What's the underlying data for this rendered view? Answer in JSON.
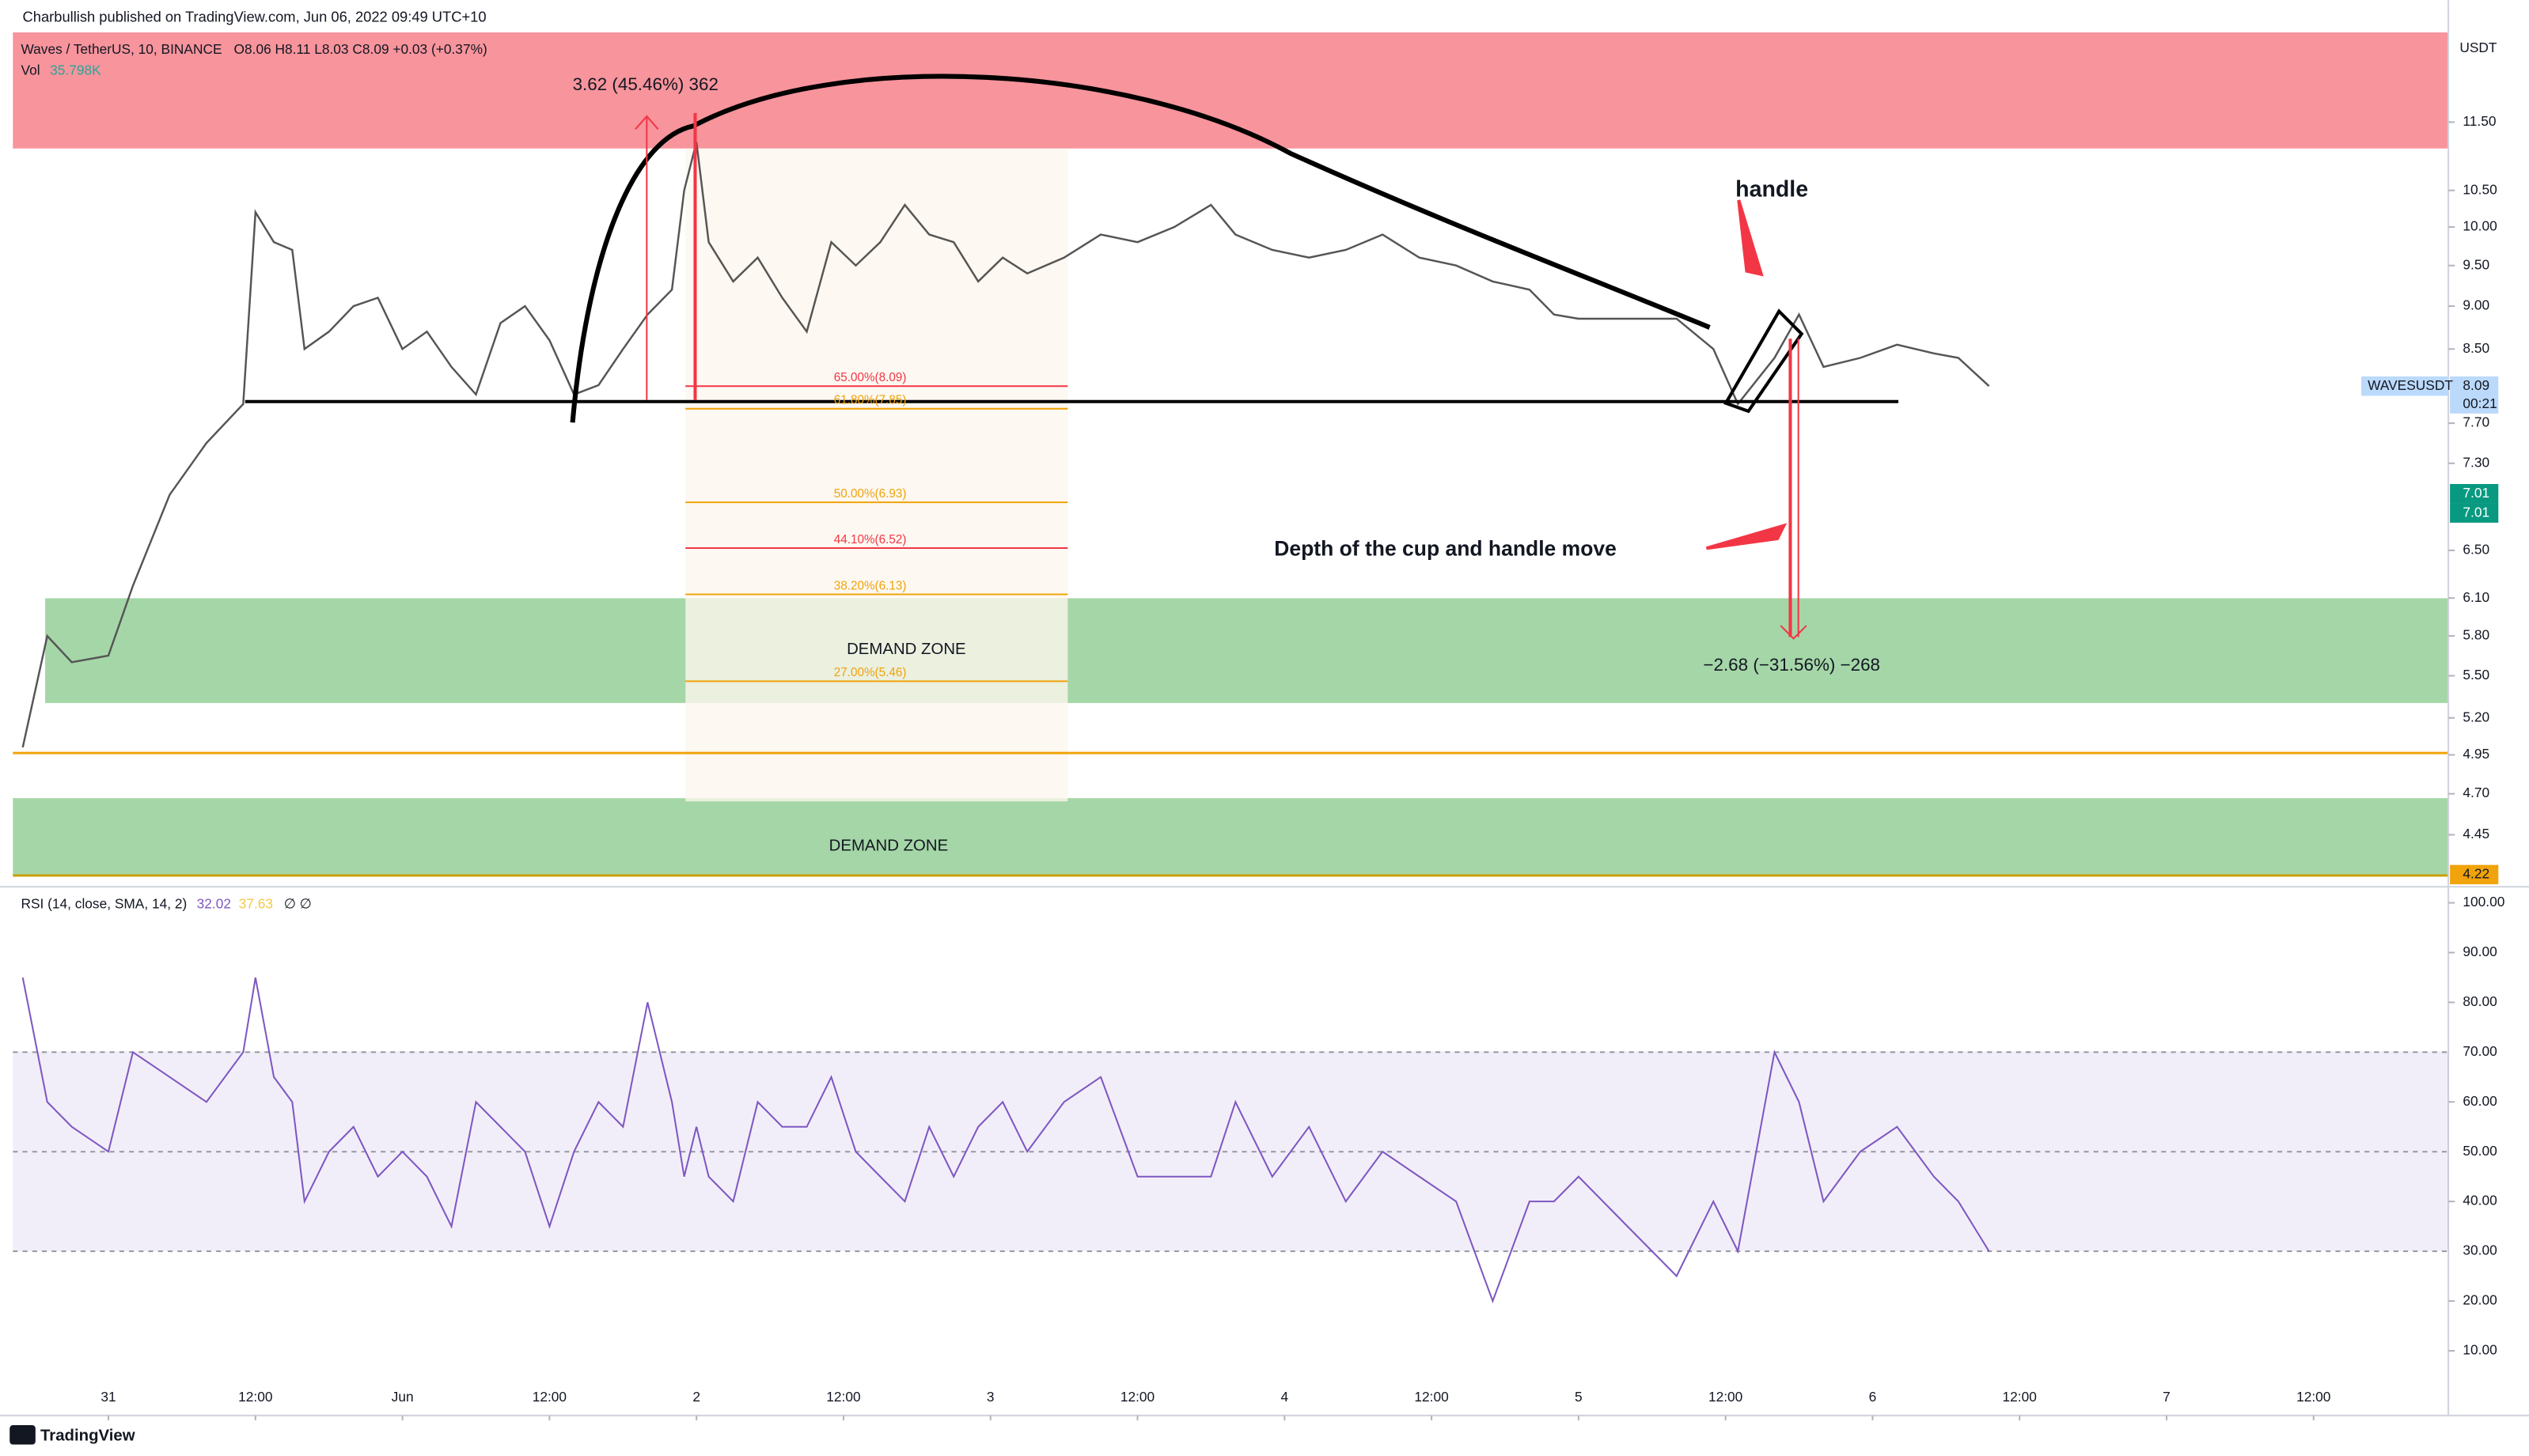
{
  "header": {
    "published": "Charbullish published on TradingView.com, Jun 06, 2022 09:49 UTC+10"
  },
  "legend": {
    "symbol": "Waves / TetherUS, 10, BINANCE",
    "ohlc": "O8.06 H8.11 L8.03 C8.09 +0.03 (+0.37%)",
    "vol_label": "Vol",
    "vol_value": "35.798K"
  },
  "chart_data": {
    "type": "line",
    "log_scale": true,
    "color": "#555555",
    "x": [
      -7,
      -5,
      -3,
      0,
      2,
      5,
      8,
      11,
      12,
      13.5,
      15,
      16,
      18,
      20,
      22,
      24,
      26,
      28,
      30,
      32,
      34,
      36,
      38,
      40,
      42,
      44,
      46,
      47,
      48,
      49,
      51,
      53,
      55,
      57,
      59,
      61,
      63,
      65,
      67,
      69,
      71,
      73,
      75,
      78,
      81,
      84,
      87,
      90,
      92,
      95,
      98,
      101,
      104,
      107,
      110,
      113,
      116,
      118,
      120,
      124,
      128,
      131,
      133,
      136,
      138,
      140,
      143,
      146,
      149,
      151,
      153.5
    ],
    "values": [
      5.0,
      5.8,
      5.6,
      5.65,
      6.2,
      7.0,
      7.5,
      7.9,
      10.2,
      9.8,
      9.7,
      8.5,
      8.7,
      9.0,
      9.1,
      8.5,
      8.7,
      8.3,
      8.0,
      8.8,
      9.0,
      8.6,
      8.0,
      8.1,
      8.5,
      8.9,
      9.2,
      10.5,
      11.2,
      9.8,
      9.3,
      9.6,
      9.1,
      8.7,
      9.8,
      9.5,
      9.8,
      10.3,
      9.9,
      9.8,
      9.3,
      9.6,
      9.4,
      9.6,
      9.9,
      9.8,
      10.0,
      10.3,
      9.9,
      9.7,
      9.6,
      9.7,
      9.9,
      9.6,
      9.5,
      9.3,
      9.2,
      8.9,
      8.85,
      8.85,
      8.85,
      8.5,
      7.9,
      8.4,
      8.9,
      8.3,
      8.4,
      8.55,
      8.45,
      8.4,
      8.09
    ],
    "xlim": [
      -7.8,
      191
    ],
    "ylim": [
      4.17,
      12.96
    ],
    "xticks": [
      {
        "value": 0,
        "label": "31"
      },
      {
        "value": 12,
        "label": "12:00"
      },
      {
        "value": 24,
        "label": "Jun"
      },
      {
        "value": 36,
        "label": "12:00"
      },
      {
        "value": 48,
        "label": "2"
      },
      {
        "value": 60,
        "label": "12:00"
      },
      {
        "value": 72,
        "label": "3"
      },
      {
        "value": 84,
        "label": "12:00"
      },
      {
        "value": 96,
        "label": "4"
      },
      {
        "value": 108,
        "label": "12:00"
      },
      {
        "value": 120,
        "label": "5"
      },
      {
        "value": 132,
        "label": "12:00"
      },
      {
        "value": 144,
        "label": "6"
      },
      {
        "value": 156,
        "label": "12:00"
      },
      {
        "value": 168,
        "label": "7"
      },
      {
        "value": 180,
        "label": "12:00"
      }
    ],
    "y_unit": "USDT",
    "yticks": [
      {
        "value": 11.5,
        "label": "11.50"
      },
      {
        "value": 10.5,
        "label": "10.50"
      },
      {
        "value": 10,
        "label": "10.00"
      },
      {
        "value": 9.5,
        "label": "9.50"
      },
      {
        "value": 9,
        "label": "9.00"
      },
      {
        "value": 8.5,
        "label": "8.50"
      },
      {
        "value": 7.7,
        "label": "7.70"
      },
      {
        "value": 7.3,
        "label": "7.30"
      },
      {
        "value": 6.5,
        "label": "6.50"
      },
      {
        "value": 6.1,
        "label": "6.10"
      },
      {
        "value": 5.8,
        "label": "5.80"
      },
      {
        "value": 5.5,
        "label": "5.50"
      },
      {
        "value": 5.2,
        "label": "5.20"
      },
      {
        "value": 4.95,
        "label": "4.95"
      },
      {
        "value": 4.7,
        "label": "4.70"
      },
      {
        "value": 4.45,
        "label": "4.45"
      }
    ],
    "price_tags": [
      {
        "value": 8.09,
        "label": "8.09",
        "name": "WAVESUSDT",
        "timer": "00:21"
      },
      {
        "value": 7.01,
        "label": "7.01"
      },
      {
        "value": 4.22,
        "label": "4.22"
      }
    ],
    "fib": [
      {
        "value": 8.09,
        "label": "65.00%(8.09)"
      },
      {
        "value": 7.85,
        "label": "61.80%(7.85)"
      },
      {
        "value": 6.93,
        "label": "50.00%(6.93)"
      },
      {
        "value": 6.52,
        "label": "44.10%(6.52)"
      },
      {
        "value": 6.13,
        "label": "38.20%(6.13)"
      },
      {
        "value": 5.46,
        "label": "27.00%(5.46)"
      }
    ],
    "annotations": {
      "rise": "3.62 (45.46%) 362",
      "handle": "handle",
      "depth": "Depth of the cup and handle move",
      "drop": "−2.68 (−31.56%) −268",
      "zone1": "DEMAND ZONE",
      "zone2": "DEMAND ZONE"
    }
  },
  "rsi": {
    "legend": "RSI (14, close, SMA, 14, 2)",
    "rsi_value": "32.02",
    "sma_value": "37.63",
    "extra": "∅ ∅",
    "color": "#7e57c2",
    "values": [
      85,
      60,
      55,
      50,
      70,
      65,
      60,
      70,
      85,
      65,
      60,
      40,
      50,
      55,
      45,
      50,
      45,
      35,
      60,
      55,
      50,
      35,
      50,
      60,
      55,
      80,
      60,
      45,
      55,
      45,
      40,
      60,
      55,
      55,
      65,
      50,
      45,
      40,
      55,
      45,
      55,
      60,
      50,
      60,
      65,
      45,
      45,
      45,
      60,
      45,
      55,
      40,
      50,
      45,
      40,
      20,
      40,
      40,
      45,
      35,
      25,
      40,
      30,
      70,
      60,
      40,
      50,
      55,
      45,
      40,
      30
    ],
    "ylim": [
      -3,
      101.6
    ],
    "yticks": [
      {
        "value": 100,
        "label": "100.00"
      },
      {
        "value": 90,
        "label": "90.00"
      },
      {
        "value": 80,
        "label": "80.00"
      },
      {
        "value": 70,
        "label": "70.00"
      },
      {
        "value": 60,
        "label": "60.00"
      },
      {
        "value": 50,
        "label": "50.00"
      },
      {
        "value": 40,
        "label": "40.00"
      },
      {
        "value": 30,
        "label": "30.00"
      },
      {
        "value": 20,
        "label": "20.00"
      },
      {
        "value": 10,
        "label": "10.00"
      }
    ]
  },
  "footer": {
    "brand": "TradingView"
  }
}
